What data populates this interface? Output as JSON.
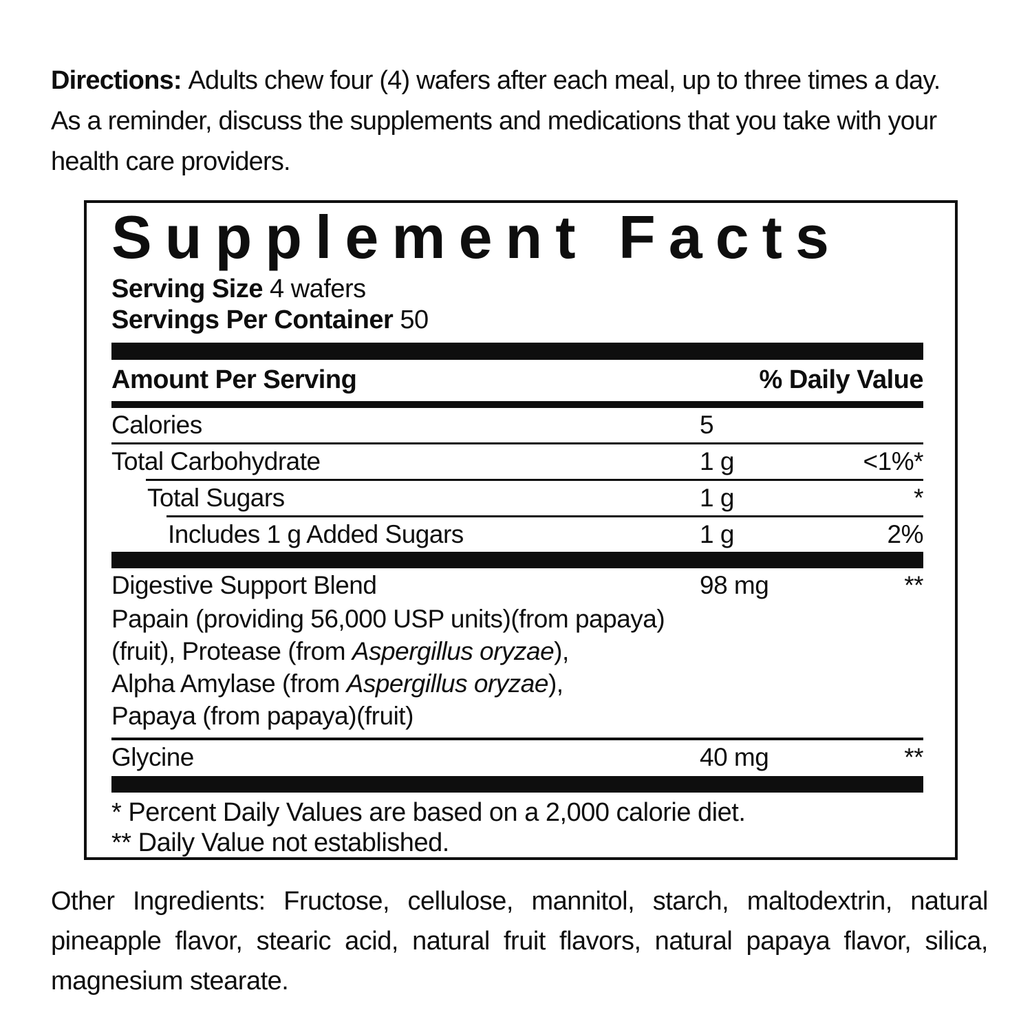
{
  "page": {
    "background": "#ffffff",
    "text_color": "#0e0e0e"
  },
  "directions": {
    "bold_prefix": "Directions: ",
    "line1_rest": "Adults chew four (4) wafers after each meal, up to three times a day.",
    "line2": "As a reminder, discuss the supplements and medications that you take with your",
    "line3": "health care providers."
  },
  "supplement_facts": {
    "title": "Supplement Facts",
    "serving_size_label": "Serving Size ",
    "serving_size_value": "4 wafers",
    "servings_per_container_label": "Servings Per Container ",
    "servings_per_container_value": "50",
    "header": {
      "amount_label": "Amount Per Serving",
      "dv_label": "% Daily Value"
    },
    "rows": [
      {
        "name": "Calories",
        "amount": "5",
        "dv": ""
      },
      {
        "name": "Total Carbohydrate",
        "amount": "1 g",
        "dv": "<1%*"
      },
      {
        "name": "Total Sugars",
        "amount": "1 g",
        "dv": "*"
      },
      {
        "name": "Includes 1 g Added Sugars",
        "amount": "1 g",
        "dv": "2%"
      }
    ],
    "blend": {
      "name": "Digestive Support Blend",
      "amount": "98 mg",
      "dv": "**",
      "lines": [
        [
          {
            "t": "Papain (providing 56,000 USP units)(from papaya)"
          }
        ],
        [
          {
            "t": "(fruit), Protease (from "
          },
          {
            "t": "Aspergillus oryzae",
            "i": true
          },
          {
            "t": "),"
          }
        ],
        [
          {
            "t": "Alpha Amylase (from "
          },
          {
            "t": "Aspergillus oryzae",
            "i": true
          },
          {
            "t": "),"
          }
        ],
        [
          {
            "t": "Papaya (from papaya)(fruit)"
          }
        ]
      ]
    },
    "glycine_row": {
      "name": "Glycine",
      "amount": "40 mg",
      "dv": "**"
    },
    "footnotes": [
      "* Percent Daily Values are based on a 2,000 calorie diet.",
      "** Daily Value not established."
    ]
  },
  "other_ingredients": {
    "lines": [
      "Other Ingredients: Fructose, cellulose, mannitol, starch, maltodextrin, natural",
      "pineapple flavor, stearic acid, natural fruit flavors, natural papaya flavor, silica,",
      "magnesium stearate."
    ]
  }
}
